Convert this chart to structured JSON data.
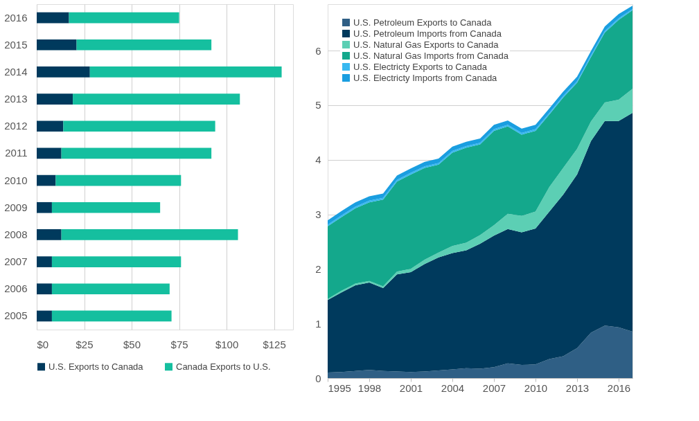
{
  "chart_data": [
    {
      "type": "bar",
      "orientation": "horizontal",
      "stacked": true,
      "categories": [
        "2016",
        "2015",
        "2014",
        "2013",
        "2012",
        "2011",
        "2010",
        "2009",
        "2008",
        "2007",
        "2006",
        "2005"
      ],
      "series": [
        {
          "name": "U.S. Exports to Canada",
          "color": "#003a5d",
          "values": [
            17,
            21,
            28,
            19,
            14,
            13,
            10,
            8,
            13,
            8,
            8,
            8
          ]
        },
        {
          "name": "Canada Exports to U.S.",
          "color": "#15bf9f",
          "values": [
            58,
            71,
            101,
            88,
            80,
            79,
            66,
            57,
            93,
            68,
            62,
            63
          ]
        }
      ],
      "xlim": [
        0,
        135
      ],
      "xticks": [
        {
          "value": 0,
          "label": "$0"
        },
        {
          "value": 25,
          "label": "$25"
        },
        {
          "value": 50,
          "label": "$50"
        },
        {
          "value": 75,
          "label": "$75"
        },
        {
          "value": 100,
          "label": "$100"
        },
        {
          "value": 125,
          "label": "$125"
        }
      ],
      "grid": "x",
      "legend": "bottom"
    },
    {
      "type": "area",
      "stacked": true,
      "x": [
        1995,
        1996,
        1997,
        1998,
        1999,
        2000,
        2001,
        2002,
        2003,
        2004,
        2005,
        2006,
        2007,
        2008,
        2009,
        2010,
        2011,
        2012,
        2013,
        2014,
        2015,
        2016,
        2017
      ],
      "series": [
        {
          "name": "U.S. Petroleum Exports to Canada",
          "color": "#2f5f85",
          "values": [
            0.1,
            0.11,
            0.13,
            0.15,
            0.13,
            0.12,
            0.11,
            0.12,
            0.14,
            0.16,
            0.18,
            0.17,
            0.2,
            0.27,
            0.24,
            0.25,
            0.35,
            0.4,
            0.55,
            0.83,
            0.96,
            0.93,
            0.85
          ]
        },
        {
          "name": "U.S. Petroleum Imports from Canada",
          "color": "#003a5d",
          "values": [
            1.33,
            1.46,
            1.57,
            1.6,
            1.52,
            1.78,
            1.83,
            1.97,
            2.07,
            2.13,
            2.16,
            2.29,
            2.41,
            2.46,
            2.43,
            2.49,
            2.7,
            2.96,
            3.18,
            3.51,
            3.75,
            3.78,
            4.01
          ]
        },
        {
          "name": "U.S. Natural Gas Exports to Canada",
          "color": "#5ccfb4",
          "values": [
            0.02,
            0.03,
            0.03,
            0.03,
            0.03,
            0.05,
            0.06,
            0.08,
            0.09,
            0.13,
            0.14,
            0.16,
            0.19,
            0.28,
            0.3,
            0.31,
            0.45,
            0.49,
            0.47,
            0.36,
            0.34,
            0.39,
            0.44
          ]
        },
        {
          "name": "U.S. Natural Gas Imports from Canada",
          "color": "#14a88c",
          "values": [
            1.33,
            1.35,
            1.38,
            1.44,
            1.59,
            1.65,
            1.73,
            1.68,
            1.61,
            1.71,
            1.74,
            1.66,
            1.73,
            1.6,
            1.49,
            1.48,
            1.33,
            1.29,
            1.21,
            1.18,
            1.28,
            1.46,
            1.44
          ]
        },
        {
          "name": "U.S. Electricty Exports to Canada",
          "color": "#38b8f0",
          "values": [
            0.03,
            0.03,
            0.03,
            0.03,
            0.03,
            0.03,
            0.03,
            0.03,
            0.03,
            0.03,
            0.03,
            0.03,
            0.03,
            0.03,
            0.03,
            0.03,
            0.03,
            0.03,
            0.03,
            0.03,
            0.03,
            0.03,
            0.02
          ]
        },
        {
          "name": "U.S. Electricty Imports from Canada",
          "color": "#1a9ee0",
          "values": [
            0.08,
            0.08,
            0.08,
            0.08,
            0.08,
            0.08,
            0.08,
            0.08,
            0.08,
            0.08,
            0.08,
            0.08,
            0.08,
            0.08,
            0.08,
            0.08,
            0.08,
            0.08,
            0.08,
            0.08,
            0.08,
            0.08,
            0.06
          ]
        }
      ],
      "xlim": [
        1995,
        2017
      ],
      "xticks": [
        1995,
        1998,
        2001,
        2004,
        2007,
        2010,
        2013,
        2016
      ],
      "ylim": [
        0,
        6.85
      ],
      "yticks": [
        0,
        1,
        2,
        3,
        4,
        5,
        6
      ],
      "grid": "y",
      "legend": "top left"
    }
  ]
}
